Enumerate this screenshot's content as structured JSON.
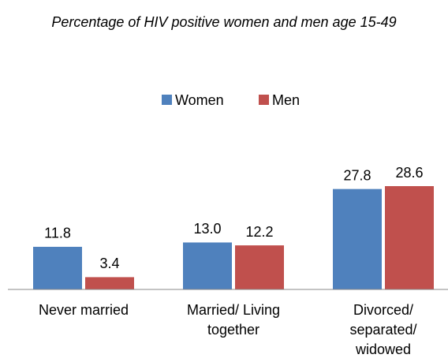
{
  "chart_data": {
    "type": "bar",
    "title": "Percentage of HIV positive women and men age 15-49",
    "categories": [
      "Never married",
      "Married/ Living together",
      "Divorced/ separated/ widowed"
    ],
    "series": [
      {
        "name": "Women",
        "color": "#4f81bd",
        "values": [
          11.8,
          13.0,
          27.8
        ],
        "value_labels": [
          "11.8",
          "13.0",
          "27.8"
        ]
      },
      {
        "name": "Men",
        "color": "#c0504d",
        "values": [
          3.4,
          12.2,
          28.6
        ],
        "value_labels": [
          "3.4",
          "12.2",
          "28.6"
        ]
      }
    ],
    "legend": "top"
  }
}
